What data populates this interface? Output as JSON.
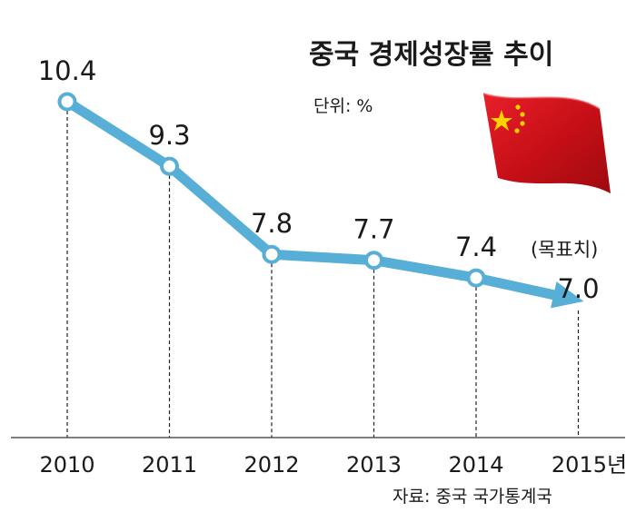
{
  "title": "중국 경제성장률 추이",
  "unit": "단위: %",
  "source": "자료: 중국 국가통계국",
  "target_label": "(목표치)",
  "year_suffix": "년",
  "colors": {
    "line": "#57aed6",
    "marker_stroke": "#57aed6",
    "marker_fill": "#ffffff",
    "guide": "#222222",
    "axis": "#555555",
    "flag_red": "#d7141a",
    "flag_star": "#ffd200"
  },
  "icons": {
    "flag": "china-flag-icon"
  },
  "chart_data": {
    "type": "line",
    "categories": [
      "2010",
      "2011",
      "2012",
      "2013",
      "2014",
      "2015년"
    ],
    "series": [
      {
        "values": [
          10.4,
          9.3,
          7.8,
          7.7,
          7.4,
          7.0
        ]
      }
    ],
    "value_labels": [
      "10.4",
      "9.3",
      "7.8",
      "7.7",
      "7.4",
      "7.0"
    ],
    "target_index": 5,
    "grid": false,
    "legend": "none"
  }
}
